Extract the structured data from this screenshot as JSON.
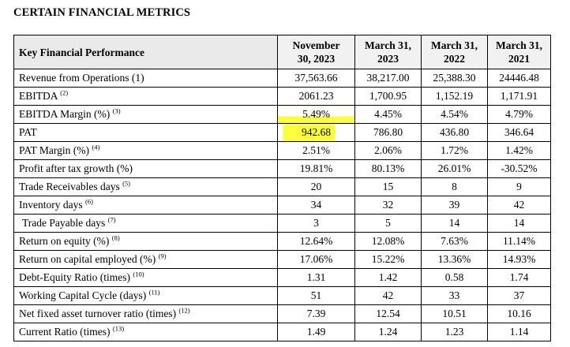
{
  "heading": "CERTAIN FINANCIAL METRICS",
  "table": {
    "header": {
      "label": "Key Financial Performance",
      "col1_line1": "November",
      "col1_line2": "30, 2023",
      "col2_line1": "March 31,",
      "col2_line2": "2023",
      "col3_line1": "March 31,",
      "col3_line2": "2022",
      "col4_line1": "March 31,",
      "col4_line2": "2021"
    },
    "rows": [
      {
        "label": "Revenue from Operations (1)",
        "note": "",
        "v1": "37,563.66",
        "v2": "38,217.00",
        "v3": "25,388.30",
        "v4": "24446.48"
      },
      {
        "label": "EBITDA",
        "note": "(2)",
        "v1": "2061.23",
        "v2": "1,700.95",
        "v3": "1,152.19",
        "v4": "1,171.91"
      },
      {
        "label": "EBITDA Margin (%)",
        "note": "(3)",
        "v1": "5.49%",
        "v2": "4.45%",
        "v3": "4.54%",
        "v4": "4.79%"
      },
      {
        "label": "PAT",
        "note": "",
        "v1": "942.68",
        "v2": "786.80",
        "v3": "436.80",
        "v4": "346.64"
      },
      {
        "label": "PAT Margin (%)",
        "note": "(4)",
        "v1": "2.51%",
        "v2": "2.06%",
        "v3": "1.72%",
        "v4": "1.42%"
      },
      {
        "label": "Profit after tax growth (%)",
        "note": "",
        "v1": "19.81%",
        "v2": "80.13%",
        "v3": "26.01%",
        "v4": "-30.52%"
      },
      {
        "label": "Trade Receivables days",
        "note": "(5)",
        "v1": "20",
        "v2": "15",
        "v3": "8",
        "v4": "9"
      },
      {
        "label": "Inventory days",
        "note": "(6)",
        "v1": "34",
        "v2": "32",
        "v3": "39",
        "v4": "42"
      },
      {
        "label": "Trade Payable days",
        "note": "(7)",
        "v1": "3",
        "v2": "5",
        "v3": "14",
        "v4": "14"
      },
      {
        "label": "Return on equity (%)",
        "note": "(8)",
        "v1": "12.64%",
        "v2": "12.08%",
        "v3": "7.63%",
        "v4": "11.14%"
      },
      {
        "label": "Return on capital employed (%)",
        "note": "(9)",
        "v1": "17.06%",
        "v2": "15.22%",
        "v3": "13.36%",
        "v4": "14.93%"
      },
      {
        "label": "Debt-Equity Ratio (times)",
        "note": "(10)",
        "v1": "1.31",
        "v2": "1.42",
        "v3": "0.58",
        "v4": "1.74"
      },
      {
        "label": "Working Capital Cycle (days)",
        "note": "(11)",
        "v1": "51",
        "v2": "42",
        "v3": "33",
        "v4": "37"
      },
      {
        "label": "Net fixed asset turnover ratio (times)",
        "note": "(12)",
        "v1": "7.39",
        "v2": "12.54",
        "v3": "10.51",
        "v4": "10.16"
      },
      {
        "label": "Current Ratio (times)",
        "note": "(13)",
        "v1": "1.49",
        "v2": "1.24",
        "v3": "1.23",
        "v4": "1.14"
      }
    ],
    "highlight_color": "#fbff3c"
  }
}
